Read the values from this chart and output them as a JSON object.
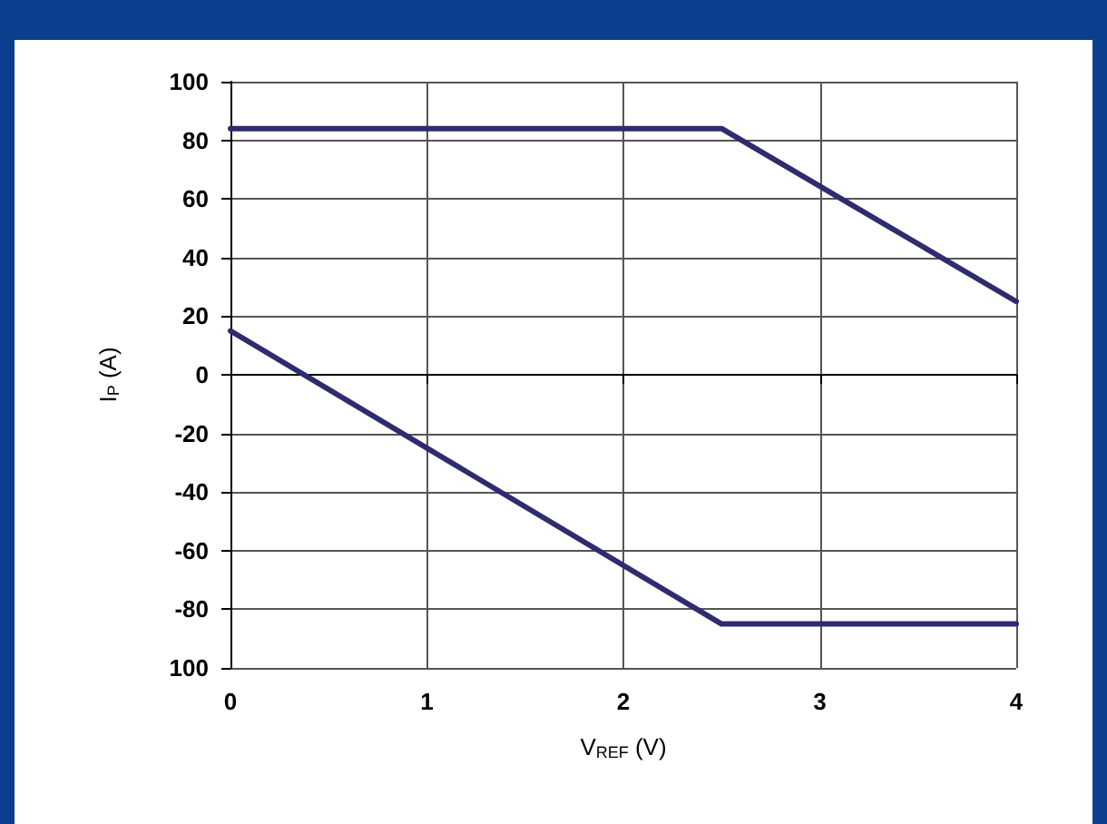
{
  "chart_data": {
    "type": "line",
    "xlabel": "V$_{REF}$ (V)",
    "ylabel": "I$_{P}$ (A)",
    "xlim": [
      0,
      4
    ],
    "xticks": [
      0,
      1,
      2,
      3,
      4
    ],
    "ylim": [
      -100,
      100
    ],
    "yticks": [
      {
        "value": -100,
        "label": "100"
      },
      -80,
      -60,
      -40,
      -20,
      0,
      20,
      40,
      60,
      80,
      100
    ],
    "grid": true,
    "marker": "none",
    "line_style": "solid",
    "series": [
      {
        "color": "#2e2c6e",
        "x": [
          0,
          2.5,
          4
        ],
        "values": [
          84,
          84,
          25
        ]
      },
      {
        "color": "#2e2c6e",
        "x": [
          0,
          2.5,
          4
        ],
        "values": [
          15,
          -85,
          -85
        ]
      }
    ]
  }
}
